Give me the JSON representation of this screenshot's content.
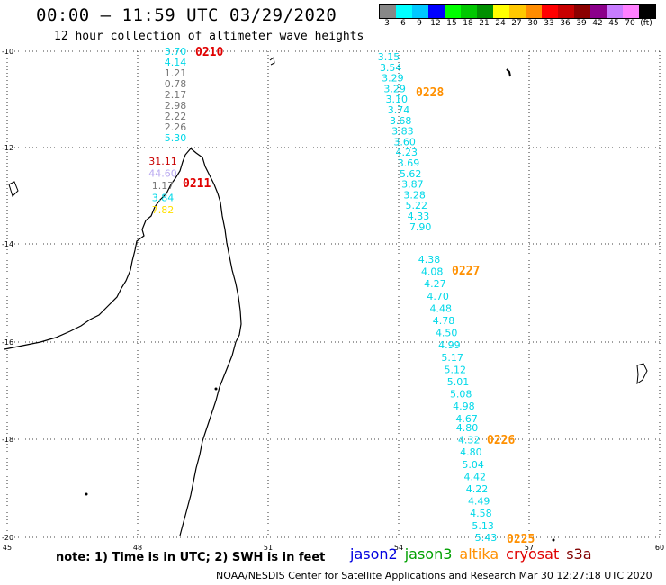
{
  "header": {
    "title": "00:00 – 11:59 UTC 03/29/2020",
    "subtitle": "12 hour collection of altimeter wave heights"
  },
  "legend": {
    "colors": [
      "#888888",
      "#00ffff",
      "#00c8ff",
      "#0000ff",
      "#00ff00",
      "#00c800",
      "#009000",
      "#ffff00",
      "#ffc800",
      "#ff8c00",
      "#ff0000",
      "#c80000",
      "#8b0000",
      "#8b008b",
      "#c87cff",
      "#ff80ff",
      "#000000"
    ],
    "labels": [
      "3",
      "6",
      "9",
      "12",
      "15",
      "18",
      "21",
      "24",
      "27",
      "30",
      "33",
      "36",
      "39",
      "42",
      "45",
      "70",
      "(ft)"
    ]
  },
  "axes": {
    "lon_ticks": [
      "45",
      "48",
      "51",
      "54",
      "57",
      "60"
    ],
    "lat_ticks": [
      "-10",
      "-12",
      "-14",
      "-16",
      "-18",
      "-20"
    ]
  },
  "tracks": [
    {
      "time": "0210",
      "time_color": "#e00000",
      "values": [
        {
          "v": "3.70",
          "c": "#00d8e8"
        },
        {
          "v": "4.14",
          "c": "#00d8e8"
        },
        {
          "v": "1.21",
          "c": "#777777"
        },
        {
          "v": "0.78",
          "c": "#777777"
        },
        {
          "v": "2.17",
          "c": "#777777"
        },
        {
          "v": "2.98",
          "c": "#777777"
        },
        {
          "v": "2.22",
          "c": "#777777"
        },
        {
          "v": "2.26",
          "c": "#777777"
        },
        {
          "v": "5.30",
          "c": "#00d8e8"
        }
      ]
    },
    {
      "time": "0211",
      "time_color": "#e00000",
      "values": [
        {
          "v": "31.11",
          "c": "#c80000"
        },
        {
          "v": "44.60",
          "c": "#b8a8f0"
        },
        {
          "v": "1.17",
          "c": "#777777"
        },
        {
          "v": "3.84",
          "c": "#00d8e8"
        },
        {
          "v": "7.82",
          "c": "#ffe000"
        }
      ]
    },
    {
      "time": "0228",
      "time_color": "#ff9000",
      "values": [
        {
          "v": "3.15",
          "c": "#00d8e8"
        },
        {
          "v": "3.54",
          "c": "#00d8e8"
        },
        {
          "v": "3.29",
          "c": "#00d8e8"
        },
        {
          "v": "3.29",
          "c": "#00d8e8"
        },
        {
          "v": "3.10",
          "c": "#00d8e8"
        },
        {
          "v": "3.74",
          "c": "#00d8e8"
        },
        {
          "v": "3.68",
          "c": "#00d8e8"
        },
        {
          "v": "3.83",
          "c": "#00d8e8"
        },
        {
          "v": "3.60",
          "c": "#00d8e8"
        },
        {
          "v": "4.23",
          "c": "#00d8e8"
        },
        {
          "v": "3.69",
          "c": "#00d8e8"
        },
        {
          "v": "5.62",
          "c": "#00d8e8"
        },
        {
          "v": "3.87",
          "c": "#00d8e8"
        },
        {
          "v": "3.28",
          "c": "#00d8e8"
        },
        {
          "v": "5.22",
          "c": "#00d8e8"
        },
        {
          "v": "4.33",
          "c": "#00d8e8"
        },
        {
          "v": "7.90",
          "c": "#00d8e8"
        }
      ]
    },
    {
      "time": "0227",
      "time_color": "#ff9000",
      "values": [
        {
          "v": "4.38",
          "c": "#00d8e8"
        },
        {
          "v": "4.08",
          "c": "#00d8e8"
        },
        {
          "v": "4.27",
          "c": "#00d8e8"
        },
        {
          "v": "4.70",
          "c": "#00d8e8"
        },
        {
          "v": "4.48",
          "c": "#00d8e8"
        },
        {
          "v": "4.78",
          "c": "#00d8e8"
        },
        {
          "v": "4.50",
          "c": "#00d8e8"
        },
        {
          "v": "4.99",
          "c": "#00d8e8"
        },
        {
          "v": "5.17",
          "c": "#00d8e8"
        },
        {
          "v": "5.12",
          "c": "#00d8e8"
        },
        {
          "v": "5.01",
          "c": "#00d8e8"
        },
        {
          "v": "5.08",
          "c": "#00d8e8"
        },
        {
          "v": "4.98",
          "c": "#00d8e8"
        },
        {
          "v": "4.67",
          "c": "#00d8e8"
        }
      ]
    },
    {
      "time": "0226",
      "time_color": "#ff9000",
      "values": [
        {
          "v": "4.80",
          "c": "#00d8e8"
        },
        {
          "v": "4.32",
          "c": "#00d8e8"
        },
        {
          "v": "4.80",
          "c": "#00d8e8"
        },
        {
          "v": "5.04",
          "c": "#00d8e8"
        },
        {
          "v": "4.42",
          "c": "#00d8e8"
        },
        {
          "v": "4.22",
          "c": "#00d8e8"
        },
        {
          "v": "4.49",
          "c": "#00d8e8"
        },
        {
          "v": "4.58",
          "c": "#00d8e8"
        },
        {
          "v": "5.13",
          "c": "#00d8e8"
        }
      ]
    },
    {
      "time": "0225",
      "time_color": "#ff9000",
      "values": [
        {
          "v": "5.43",
          "c": "#00d8e8"
        }
      ]
    }
  ],
  "footer": {
    "note": "note: 1) Time is in UTC; 2) SWH is in feet",
    "satellites": [
      {
        "name": "jason2",
        "color": "#0000e0"
      },
      {
        "name": "jason3",
        "color": "#00a000"
      },
      {
        "name": "altika",
        "color": "#ff9000"
      },
      {
        "name": "cryosat",
        "color": "#e00000"
      },
      {
        "name": "s3a",
        "color": "#800000"
      }
    ],
    "credit": "NOAA/NESDIS Center for Satellite Applications and Research  Mar 30 12:27:18 UTC 2020"
  }
}
